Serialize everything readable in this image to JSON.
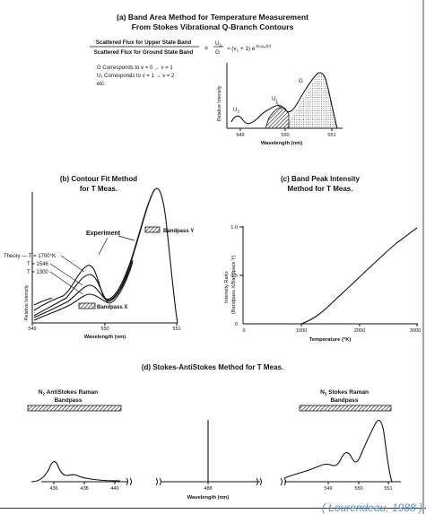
{
  "panel_a": {
    "title_line1": "(a)  Band Area Method for Temperature Measurement",
    "title_line2": "From Stokes Vibrational Q-Branch Contours",
    "ratio_numerator": "Scattered Flux for Upper State Band",
    "ratio_denominator": "Scattered Flux for Ground State Band",
    "ratio_equals": "=",
    "ratio_U": "U",
    "ratio_U_sub": "1",
    "ratio_G": "G",
    "ratio_rhs": "≈ (v",
    "ratio_rhs_sub": "1",
    "ratio_rhs2": " + 1) e",
    "ratio_rhs_sup": "-hcω",
    "ratio_rhs_sup_sub": "e",
    "ratio_rhs_sup2": "/kT",
    "notes": [
      "G Corresponds to v = 0 → v = 1",
      "U₁ Corresponds to v = 1 → v = 2",
      "etc."
    ],
    "ylabel": "Relative Intensity",
    "xlabel": "Wavelength (nm)",
    "ticks": [
      "549",
      "550",
      "551"
    ],
    "labels": {
      "U2": "U",
      "U2_sub": "2",
      "U1": "U",
      "U1_sub": "1",
      "G": "G"
    }
  },
  "panel_b": {
    "title_line1": "(b)  Contour Fit Method",
    "title_line2": "for T Meas.",
    "experiment": "Experiment",
    "theory_lines": [
      "Theory — T = 1700°K",
      "T = 1546",
      "T = 1300"
    ],
    "bandpass_x": "Bandpass X",
    "bandpass_y": "Bandpass Y",
    "ylabel": "Relative Intensity",
    "xlabel": "Wavelength (nm)",
    "ticks": [
      "549",
      "550",
      "551"
    ]
  },
  "panel_c": {
    "title_line1": "(c)  Band Peak Intensity",
    "title_line2": "Method for T Meas.",
    "ylabel_line1": "Intensity Ratio",
    "ylabel_line2": "(Bandpass X/Bandpass Y)",
    "xlabel": "Temperature (°K)",
    "xticks": [
      "0",
      "1000",
      "2000",
      "3000"
    ],
    "yticks": [
      "0",
      "0.5",
      "1.0"
    ]
  },
  "panel_d": {
    "title": "(d)  Stokes-AntiStokes Method for T Meas.",
    "anti_label_1": "N",
    "anti_label_sub": "2",
    "anti_label_2": " AntiStokes Raman",
    "anti_label_3": "Bandpass",
    "stokes_label_1": "N",
    "stokes_label_sub": "2",
    "stokes_label_2": " Stokes Raman",
    "stokes_label_3": "Bandpass",
    "xlabel": "Wavelength (nm)",
    "ticks": [
      "436",
      "438",
      "440",
      "488",
      "549",
      "550",
      "551"
    ]
  },
  "citation": "( Lourendeau, 1988 )"
}
